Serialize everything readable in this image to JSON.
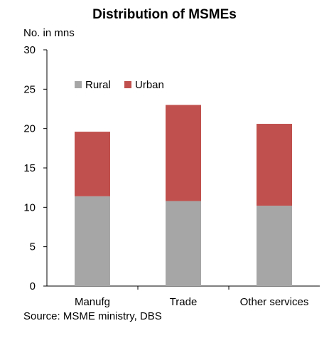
{
  "chart_data": {
    "type": "bar",
    "stacked": true,
    "title": "Distribution of MSMEs",
    "ylabel": "No. in mns",
    "xlabel": "",
    "categories": [
      "Manufg",
      "Trade",
      "Other services"
    ],
    "series": [
      {
        "name": "Rural",
        "values": [
          11.4,
          10.8,
          10.2
        ],
        "color": "#a6a6a6"
      },
      {
        "name": "Urban",
        "values": [
          8.2,
          12.2,
          10.4
        ],
        "color": "#c0504d"
      }
    ],
    "ylim": [
      0,
      30
    ],
    "yticks": [
      0,
      5,
      10,
      15,
      20,
      25,
      30
    ],
    "legend_position": "top-left",
    "grid": false,
    "source": "Source: MSME ministry, DBS"
  }
}
